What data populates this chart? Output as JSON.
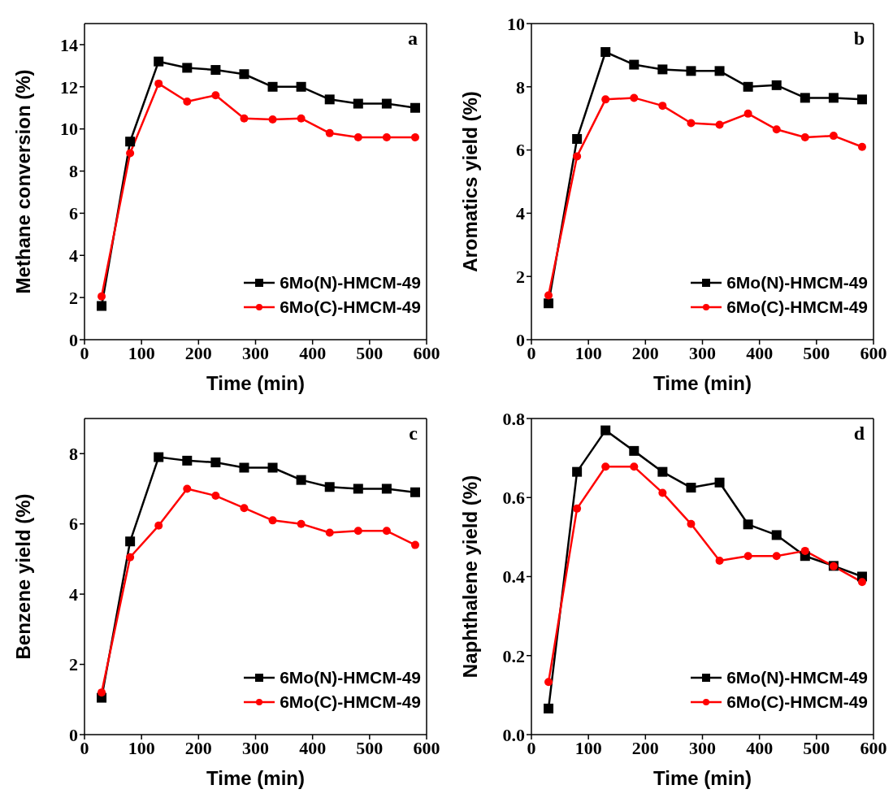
{
  "chart_data": [
    {
      "type": "line",
      "title": "a",
      "xlabel": "Time (min)",
      "ylabel": "Methane conversion (%)",
      "x": [
        30,
        80,
        130,
        180,
        230,
        280,
        330,
        380,
        430,
        480,
        530,
        580
      ],
      "xlim": [
        0,
        600
      ],
      "xticks": [
        0,
        100,
        200,
        300,
        400,
        500,
        600
      ],
      "ylim": [
        0,
        15
      ],
      "yticks": [
        0,
        2,
        4,
        6,
        8,
        10,
        12,
        14
      ],
      "legend": "bottom right",
      "grid": false,
      "line_style": "solid",
      "series": [
        {
          "name": "6Mo(N)-HMCM-49",
          "color": "#000000",
          "marker": "square",
          "values": [
            1.6,
            9.4,
            13.2,
            12.9,
            12.8,
            12.6,
            12.0,
            12.0,
            11.4,
            11.2,
            11.2,
            11.0
          ]
        },
        {
          "name": "6Mo(C)-HMCM-49",
          "color": "#ff0000",
          "marker": "circle",
          "values": [
            2.05,
            8.85,
            12.15,
            11.3,
            11.6,
            10.5,
            10.45,
            10.5,
            9.8,
            9.6,
            9.6,
            9.6
          ]
        }
      ]
    },
    {
      "type": "line",
      "title": "b",
      "xlabel": "Time (min)",
      "ylabel": "Aromatics yield (%)",
      "x": [
        30,
        80,
        130,
        180,
        230,
        280,
        330,
        380,
        430,
        480,
        530,
        580
      ],
      "xlim": [
        0,
        600
      ],
      "xticks": [
        0,
        100,
        200,
        300,
        400,
        500,
        600
      ],
      "ylim": [
        0,
        10
      ],
      "yticks": [
        0,
        2,
        4,
        6,
        8,
        10
      ],
      "legend": "bottom right",
      "grid": false,
      "line_style": "solid",
      "series": [
        {
          "name": "6Mo(N)-HMCM-49",
          "color": "#000000",
          "marker": "square",
          "values": [
            1.15,
            6.35,
            9.1,
            8.7,
            8.55,
            8.5,
            8.5,
            8.0,
            8.05,
            7.65,
            7.65,
            7.6
          ]
        },
        {
          "name": "6Mo(C)-HMCM-49",
          "color": "#ff0000",
          "marker": "circle",
          "values": [
            1.4,
            5.8,
            7.6,
            7.65,
            7.4,
            6.85,
            6.8,
            7.15,
            6.65,
            6.4,
            6.45,
            6.1
          ]
        }
      ]
    },
    {
      "type": "line",
      "title": "c",
      "xlabel": "Time (min)",
      "ylabel": "Benzene yield (%)",
      "x": [
        30,
        80,
        130,
        180,
        230,
        280,
        330,
        380,
        430,
        480,
        530,
        580
      ],
      "xlim": [
        0,
        600
      ],
      "xticks": [
        0,
        100,
        200,
        300,
        400,
        500,
        600
      ],
      "ylim": [
        0,
        9
      ],
      "yticks": [
        0,
        2,
        4,
        6,
        8
      ],
      "legend": "bottom right",
      "grid": false,
      "line_style": "solid",
      "series": [
        {
          "name": "6Mo(N)-HMCM-49",
          "color": "#000000",
          "marker": "square",
          "values": [
            1.05,
            5.5,
            7.9,
            7.8,
            7.75,
            7.6,
            7.6,
            7.25,
            7.05,
            7.0,
            7.0,
            6.9
          ]
        },
        {
          "name": "6Mo(C)-HMCM-49",
          "color": "#ff0000",
          "marker": "circle",
          "values": [
            1.2,
            5.05,
            5.95,
            7.0,
            6.8,
            6.45,
            6.1,
            6.0,
            5.75,
            5.8,
            5.8,
            5.4
          ]
        }
      ]
    },
    {
      "type": "line",
      "title": "d",
      "xlabel": "Time (min)",
      "ylabel": "Naphthalene yield (%)",
      "x": [
        30,
        80,
        130,
        180,
        230,
        280,
        330,
        380,
        430,
        480,
        530,
        580
      ],
      "xlim": [
        0,
        600
      ],
      "xticks": [
        0,
        100,
        200,
        300,
        400,
        500,
        600
      ],
      "ylim": [
        0,
        0.8
      ],
      "yticks": [
        {
          "value": 0,
          "label": "0.0"
        },
        0.2,
        0.4,
        0.6,
        0.8
      ],
      "legend": "bottom right",
      "grid": false,
      "line_style": "solid",
      "series": [
        {
          "name": "6Mo(N)-HMCM-49",
          "color": "#000000",
          "marker": "square",
          "values": [
            0.066,
            0.665,
            0.77,
            0.718,
            0.665,
            0.625,
            0.638,
            0.532,
            0.505,
            0.452,
            0.427,
            0.4
          ]
        },
        {
          "name": "6Mo(C)-HMCM-49",
          "color": "#ff0000",
          "marker": "circle",
          "values": [
            0.133,
            0.572,
            0.678,
            0.678,
            0.612,
            0.533,
            0.44,
            0.452,
            0.452,
            0.465,
            0.426,
            0.386
          ]
        }
      ]
    }
  ]
}
